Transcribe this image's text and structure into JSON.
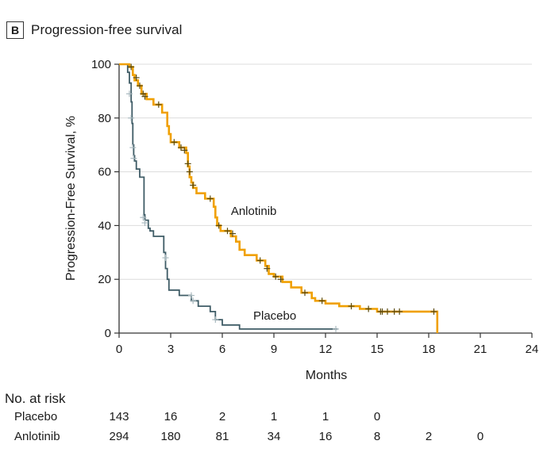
{
  "panel": {
    "letter": "B",
    "title": "Progression-free survival"
  },
  "colors": {
    "placebo": "#3f5c66",
    "placebo_censor": "#a9b9bf",
    "anlotinib": "#f0a000",
    "anlotinib_censor": "#5a4a10",
    "grid": "#dcdcdc",
    "axis": "#333333"
  },
  "chart_data": {
    "type": "line",
    "step": true,
    "title": "Progression-free survival",
    "xlabel": "Months",
    "ylabel": "Progression-Free Survival, %",
    "xlim": [
      0,
      24
    ],
    "ylim": [
      0,
      100
    ],
    "xticks": [
      0,
      3,
      6,
      9,
      12,
      15,
      18,
      21,
      24
    ],
    "yticks": [
      0,
      20,
      40,
      60,
      80,
      100
    ],
    "grid": "horizontal",
    "series": [
      {
        "name": "Placebo",
        "label": "Placebo",
        "color": "#3f5c66",
        "points": [
          [
            0,
            100
          ],
          [
            0.5,
            100
          ],
          [
            0.5,
            97
          ],
          [
            0.6,
            97
          ],
          [
            0.6,
            93
          ],
          [
            0.7,
            93
          ],
          [
            0.7,
            86
          ],
          [
            0.75,
            86
          ],
          [
            0.75,
            78
          ],
          [
            0.8,
            78
          ],
          [
            0.8,
            70
          ],
          [
            0.85,
            70
          ],
          [
            0.85,
            66
          ],
          [
            0.9,
            66
          ],
          [
            0.9,
            64
          ],
          [
            1.0,
            64
          ],
          [
            1.0,
            61
          ],
          [
            1.2,
            61
          ],
          [
            1.2,
            58
          ],
          [
            1.45,
            58
          ],
          [
            1.45,
            44
          ],
          [
            1.5,
            44
          ],
          [
            1.5,
            42
          ],
          [
            1.7,
            42
          ],
          [
            1.7,
            39
          ],
          [
            1.8,
            39
          ],
          [
            1.8,
            38
          ],
          [
            2.0,
            38
          ],
          [
            2.0,
            36
          ],
          [
            2.6,
            36
          ],
          [
            2.6,
            30
          ],
          [
            2.7,
            30
          ],
          [
            2.7,
            24
          ],
          [
            2.8,
            24
          ],
          [
            2.8,
            20
          ],
          [
            2.9,
            20
          ],
          [
            2.9,
            16
          ],
          [
            3.5,
            16
          ],
          [
            3.5,
            14
          ],
          [
            4.2,
            14
          ],
          [
            4.2,
            12
          ],
          [
            4.6,
            12
          ],
          [
            4.6,
            10
          ],
          [
            5.3,
            10
          ],
          [
            5.3,
            8
          ],
          [
            5.6,
            8
          ],
          [
            5.6,
            5
          ],
          [
            6.0,
            5
          ],
          [
            6.0,
            3
          ],
          [
            7.0,
            3
          ],
          [
            7.0,
            1.5
          ],
          [
            12.7,
            1.5
          ]
        ],
        "censor": [
          [
            0.6,
            89
          ],
          [
            0.7,
            80
          ],
          [
            0.8,
            69
          ],
          [
            0.85,
            65
          ],
          [
            1.4,
            43
          ],
          [
            1.5,
            41
          ],
          [
            2.7,
            28
          ],
          [
            4.2,
            14
          ],
          [
            4.3,
            12
          ],
          [
            5.6,
            5
          ],
          [
            12.6,
            1.5
          ]
        ]
      },
      {
        "name": "Anlotinib",
        "label": "Anlotinib",
        "color": "#f0a000",
        "points": [
          [
            0,
            100
          ],
          [
            0.6,
            100
          ],
          [
            0.6,
            99
          ],
          [
            0.8,
            99
          ],
          [
            0.8,
            96
          ],
          [
            0.9,
            96
          ],
          [
            0.9,
            94
          ],
          [
            1.1,
            94
          ],
          [
            1.1,
            92
          ],
          [
            1.3,
            92
          ],
          [
            1.3,
            89
          ],
          [
            1.6,
            89
          ],
          [
            1.6,
            87
          ],
          [
            2.0,
            87
          ],
          [
            2.0,
            85
          ],
          [
            2.5,
            85
          ],
          [
            2.5,
            82
          ],
          [
            2.8,
            82
          ],
          [
            2.8,
            77
          ],
          [
            2.9,
            77
          ],
          [
            2.9,
            74
          ],
          [
            3.0,
            74
          ],
          [
            3.0,
            71
          ],
          [
            3.5,
            71
          ],
          [
            3.5,
            69
          ],
          [
            3.9,
            69
          ],
          [
            3.9,
            67
          ],
          [
            4.0,
            67
          ],
          [
            4.0,
            62
          ],
          [
            4.1,
            62
          ],
          [
            4.1,
            58
          ],
          [
            4.2,
            58
          ],
          [
            4.2,
            56
          ],
          [
            4.3,
            56
          ],
          [
            4.3,
            54
          ],
          [
            4.5,
            54
          ],
          [
            4.5,
            52
          ],
          [
            5.0,
            52
          ],
          [
            5.0,
            50
          ],
          [
            5.5,
            50
          ],
          [
            5.5,
            47
          ],
          [
            5.6,
            47
          ],
          [
            5.6,
            43
          ],
          [
            5.7,
            43
          ],
          [
            5.7,
            40
          ],
          [
            5.9,
            40
          ],
          [
            5.9,
            38
          ],
          [
            6.5,
            38
          ],
          [
            6.5,
            36
          ],
          [
            6.8,
            36
          ],
          [
            6.8,
            34
          ],
          [
            7.0,
            34
          ],
          [
            7.0,
            31
          ],
          [
            7.3,
            31
          ],
          [
            7.3,
            29
          ],
          [
            8.0,
            29
          ],
          [
            8.0,
            27
          ],
          [
            8.5,
            27
          ],
          [
            8.5,
            25
          ],
          [
            8.7,
            25
          ],
          [
            8.7,
            22
          ],
          [
            9.0,
            22
          ],
          [
            9.0,
            21
          ],
          [
            9.5,
            21
          ],
          [
            9.5,
            19
          ],
          [
            10.0,
            19
          ],
          [
            10.0,
            17
          ],
          [
            10.6,
            17
          ],
          [
            10.6,
            15
          ],
          [
            11.2,
            15
          ],
          [
            11.2,
            13
          ],
          [
            11.4,
            13
          ],
          [
            11.4,
            12
          ],
          [
            12.0,
            12
          ],
          [
            12.0,
            11
          ],
          [
            12.8,
            11
          ],
          [
            12.8,
            10
          ],
          [
            14.0,
            10
          ],
          [
            14.0,
            9
          ],
          [
            15.0,
            9
          ],
          [
            15.0,
            8
          ],
          [
            18.5,
            8
          ],
          [
            18.5,
            0
          ]
        ],
        "censor": [
          [
            0.7,
            99
          ],
          [
            1.0,
            95
          ],
          [
            1.2,
            92
          ],
          [
            1.4,
            89
          ],
          [
            1.5,
            88
          ],
          [
            2.3,
            85
          ],
          [
            3.2,
            71
          ],
          [
            3.6,
            69
          ],
          [
            3.8,
            68
          ],
          [
            4.0,
            63
          ],
          [
            4.1,
            60
          ],
          [
            4.3,
            55
          ],
          [
            5.3,
            50
          ],
          [
            5.8,
            40
          ],
          [
            6.3,
            38
          ],
          [
            6.6,
            37
          ],
          [
            8.2,
            27
          ],
          [
            8.6,
            24
          ],
          [
            9.1,
            21
          ],
          [
            9.4,
            20
          ],
          [
            10.8,
            15
          ],
          [
            11.8,
            12
          ],
          [
            13.5,
            10
          ],
          [
            14.5,
            9
          ],
          [
            15.2,
            8
          ],
          [
            15.3,
            8
          ],
          [
            15.6,
            8
          ],
          [
            16.0,
            8
          ],
          [
            16.3,
            8
          ],
          [
            18.3,
            8
          ]
        ]
      }
    ],
    "annotations": [
      {
        "text": "Anlotinib",
        "x": 6.5,
        "y": 44
      },
      {
        "text": "Placebo",
        "x": 7.8,
        "y": 5
      }
    ],
    "risk_table": {
      "heading": "No. at risk",
      "times": [
        0,
        3,
        6,
        9,
        12,
        15,
        18,
        21
      ],
      "rows": [
        {
          "label": "Placebo",
          "counts": [
            "143",
            "16",
            "2",
            "1",
            "1",
            "0"
          ]
        },
        {
          "label": "Anlotinib",
          "counts": [
            "294",
            "180",
            "81",
            "34",
            "16",
            "8",
            "2",
            "0"
          ]
        }
      ]
    }
  }
}
